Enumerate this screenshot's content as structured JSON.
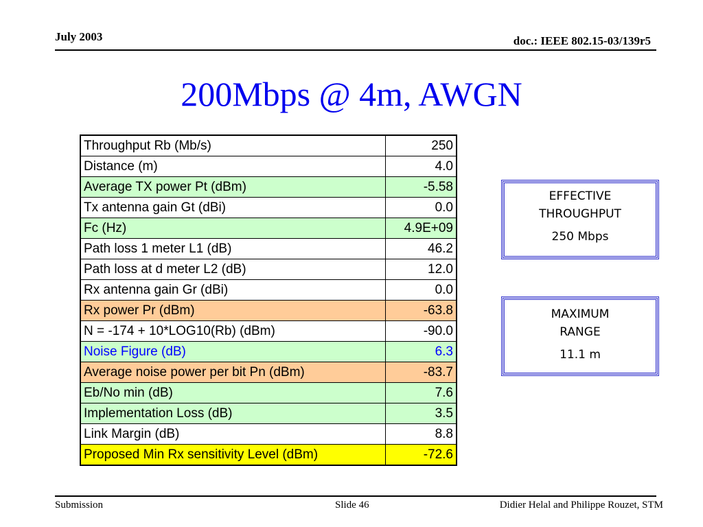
{
  "header": {
    "date": "July 2003",
    "doc": "doc.: IEEE 802.15-03/139r5"
  },
  "title": "200Mbps @ 4m, AWGN",
  "table": {
    "rows": [
      {
        "label": "Throughput Rb (Mb/s)",
        "value": "250",
        "style": "white"
      },
      {
        "label": "Distance (m)",
        "value": "4.0",
        "style": "white"
      },
      {
        "label": "Average TX power Pt (dBm)",
        "value": "-5.58",
        "style": "green"
      },
      {
        "label": "Tx antenna gain Gt (dBi)",
        "value": "0.0",
        "style": "white"
      },
      {
        "label": "Fc (Hz)",
        "value": "4.9E+09",
        "style": "green"
      },
      {
        "label": "Path loss 1 meter L1 (dB)",
        "value": "46.2",
        "style": "white"
      },
      {
        "label": "Path loss at d meter L2 (dB)",
        "value": "12.0",
        "style": "white"
      },
      {
        "label": "Rx antenna gain Gr (dBi)",
        "value": "0.0",
        "style": "white"
      },
      {
        "label": "Rx power Pr (dBm)",
        "value": "-63.8",
        "style": "orange"
      },
      {
        "label": "N = -174 + 10*LOG10(Rb) (dBm)",
        "value": "-90.0",
        "style": "white"
      },
      {
        "label": "Noise Figure (dB)",
        "value": "6.3",
        "style": "green blue"
      },
      {
        "label": "Average noise power per bit Pn (dBm)",
        "value": "-83.7",
        "style": "orange"
      },
      {
        "label": "Eb/No min (dB)",
        "value": "7.6",
        "style": "green"
      },
      {
        "label": "Implementation Loss (dB)",
        "value": "3.5",
        "style": "green"
      },
      {
        "label": "Link Margin (dB)",
        "value": "8.8",
        "style": "white"
      },
      {
        "label": "Proposed Min Rx sensitivity Level (dBm)",
        "value": "-72.6",
        "style": "yellow"
      }
    ]
  },
  "effective_box": {
    "line1": "EFFECTIVE",
    "line2": "THROUGHPUT",
    "value": "250 Mbps"
  },
  "range_box": {
    "line1": "MAXIMUM",
    "line2": "RANGE",
    "value": "11.1 m"
  },
  "footer": {
    "left": "Submission",
    "center": "Slide 46",
    "right": "Didier Helal and Philippe Rouzet, STM"
  }
}
